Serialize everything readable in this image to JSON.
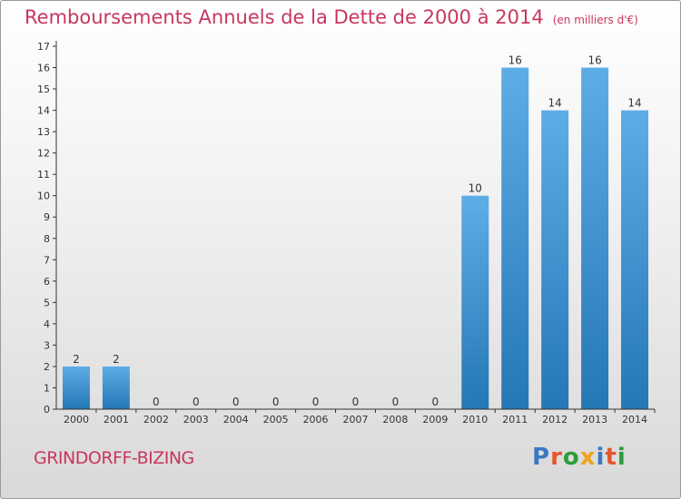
{
  "header": {
    "title": "Remboursements Annuels de la Dette de 2000 à 2014",
    "unit": "(en milliers d'€)"
  },
  "footer": {
    "commune": "GRINDORFF-BIZING",
    "logo": {
      "text": "Proxiti",
      "letter_colors": [
        "#3a78c2",
        "#e4572e",
        "#2e9b3c",
        "#f0a31c",
        "#3a78c2",
        "#e4572e",
        "#2e9b3c"
      ]
    }
  },
  "colors": {
    "title": "#c8365e",
    "bar_light": "#5dade6",
    "bar_dark": "#2577b5",
    "axis": "#333333"
  },
  "chart_data": {
    "type": "bar",
    "title": "Remboursements Annuels de la Dette de 2000 à 2014",
    "categories": [
      "2000",
      "2001",
      "2002",
      "2003",
      "2004",
      "2005",
      "2006",
      "2007",
      "2008",
      "2009",
      "2010",
      "2011",
      "2012",
      "2013",
      "2014"
    ],
    "values": [
      2,
      2,
      0,
      0,
      0,
      0,
      0,
      0,
      0,
      0,
      10,
      16,
      14,
      16,
      14
    ],
    "data_labels": [
      "2",
      "2",
      "0",
      "0",
      "0",
      "0",
      "0",
      "0",
      "0",
      "0",
      "10",
      "16",
      "14",
      "16",
      "14"
    ],
    "y_ticks": [
      "0",
      "1",
      "2",
      "3",
      "4",
      "5",
      "6",
      "7",
      "8",
      "9",
      "10",
      "11",
      "12",
      "13",
      "14",
      "15",
      "16",
      "17"
    ],
    "ylim": [
      0,
      17
    ],
    "grid": false
  }
}
